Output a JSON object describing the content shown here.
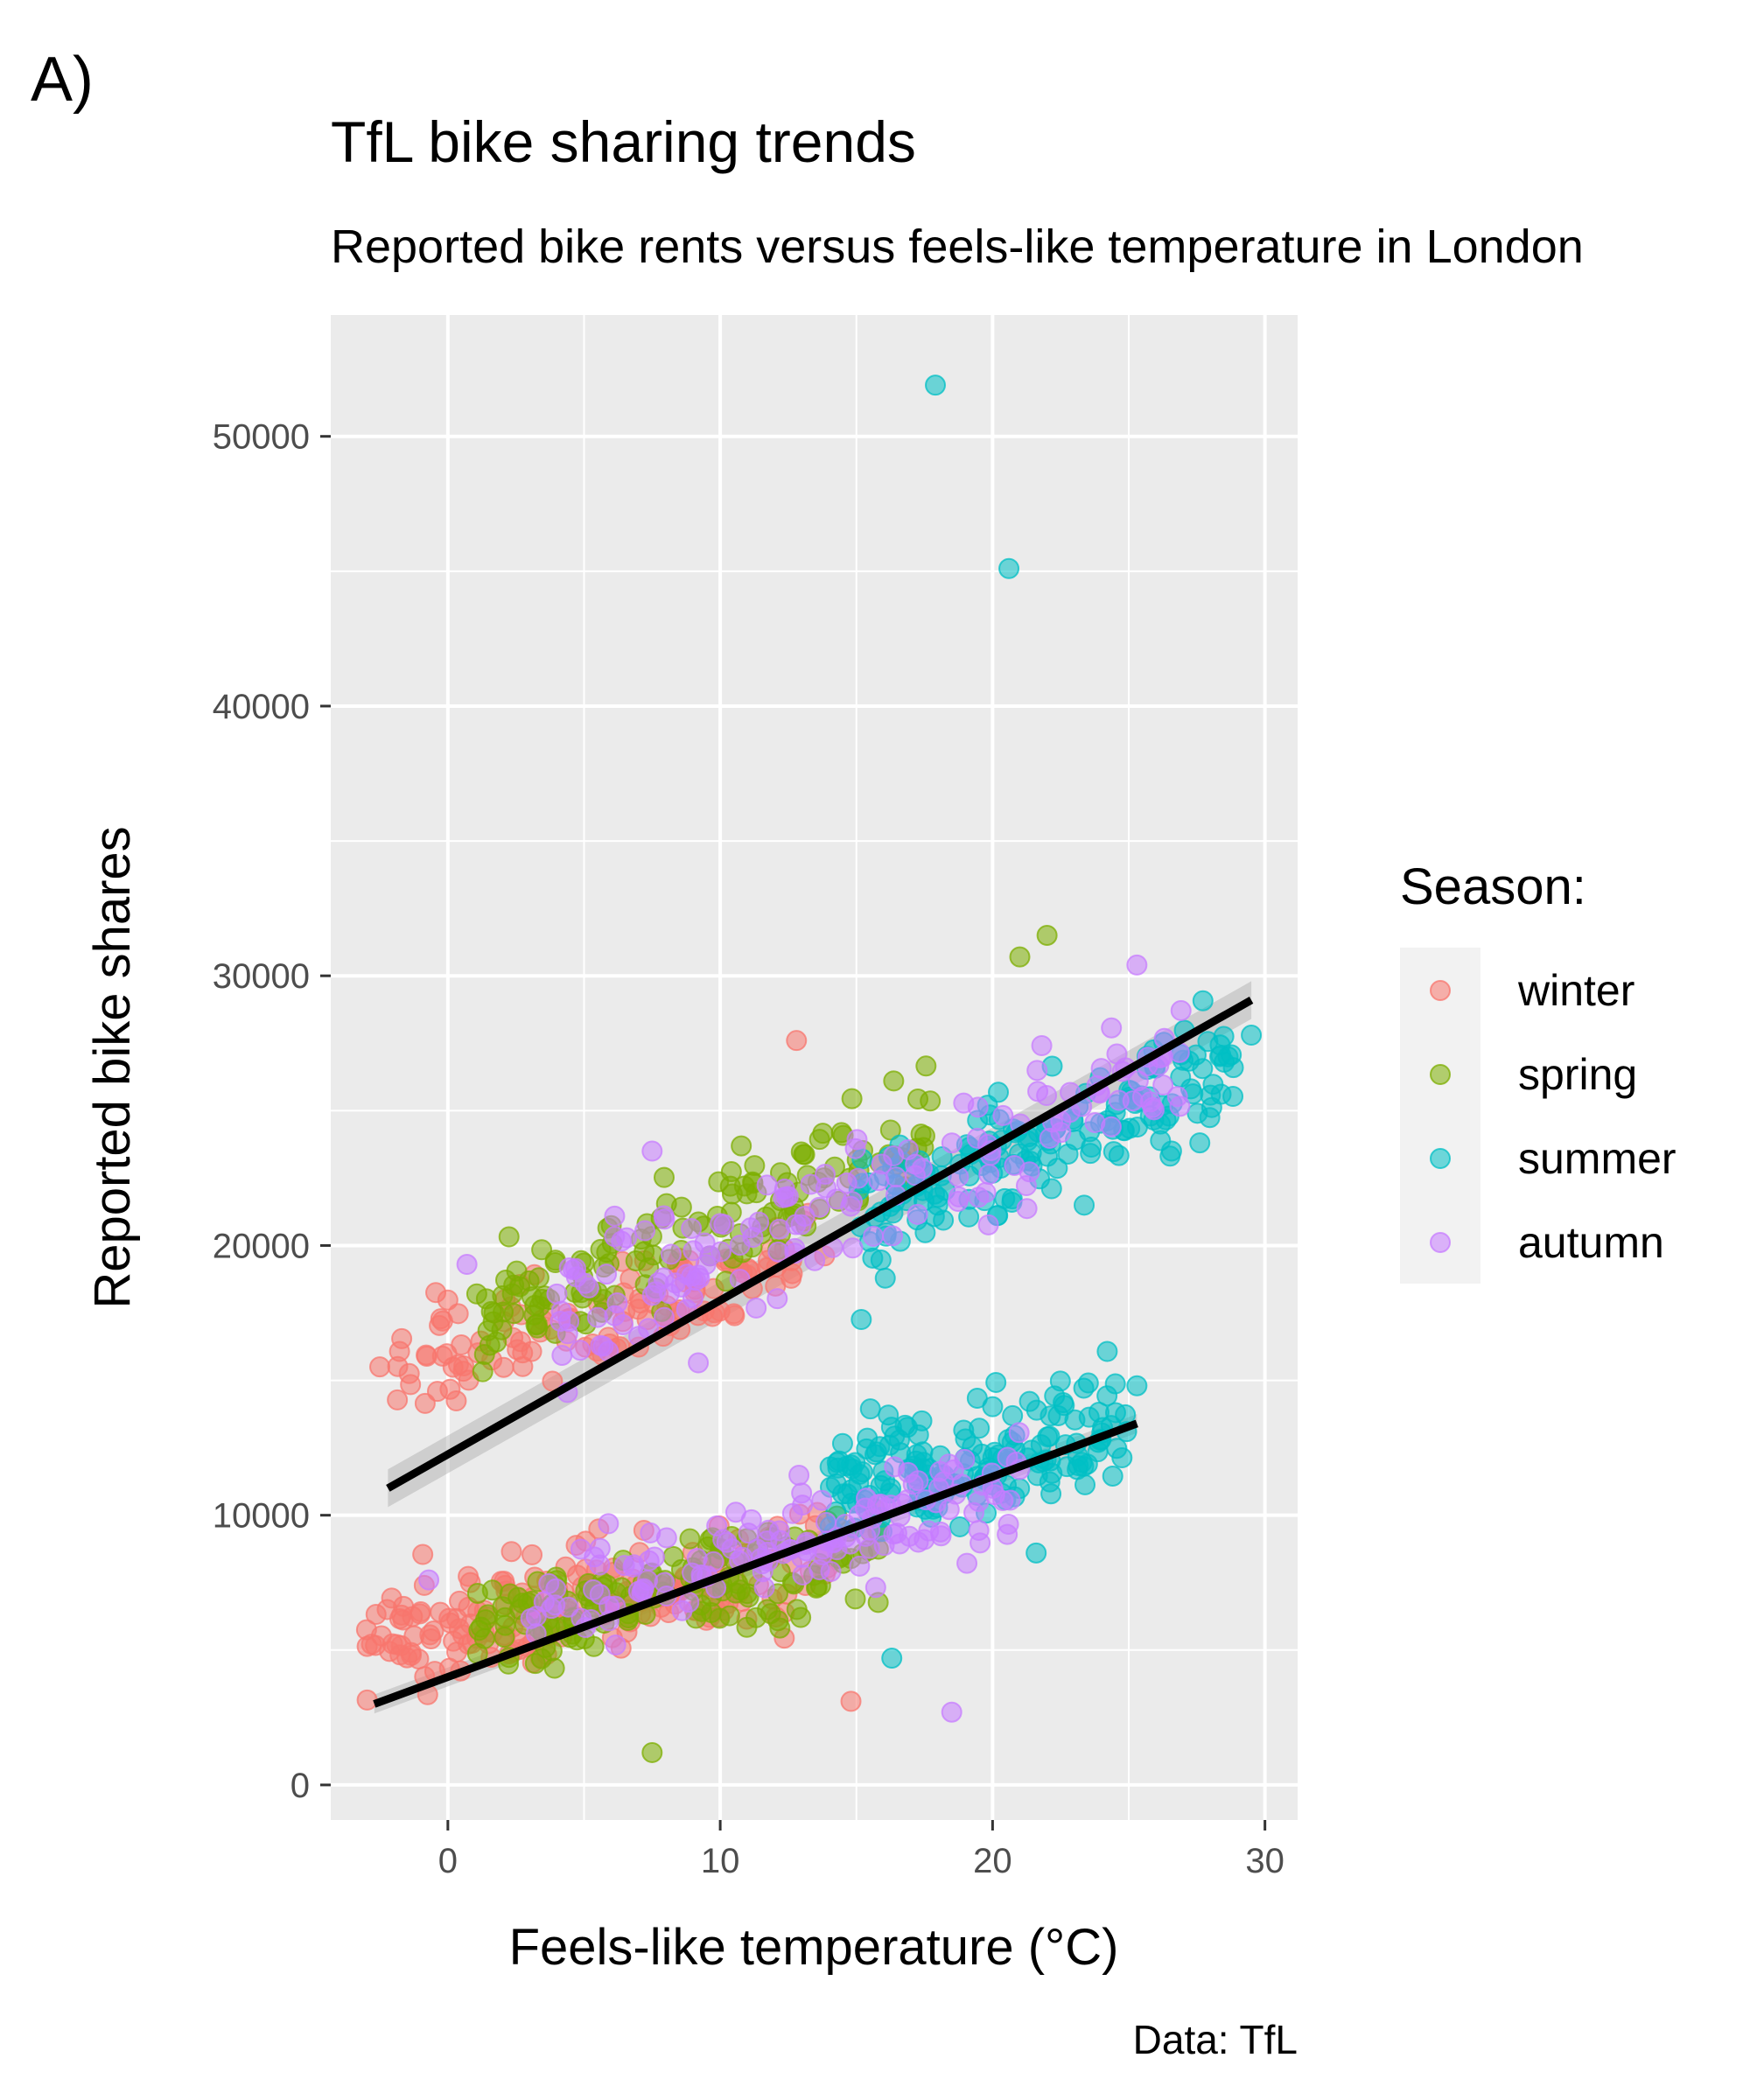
{
  "panel_tag": "A)",
  "caption": "Data: TfL",
  "chart_data": {
    "type": "scatter",
    "title": "TfL bike sharing trends",
    "subtitle": "Reported bike rents versus feels-like temperature in London",
    "xlabel": "Feels-like temperature (°C)",
    "ylabel": "Reported bike shares",
    "xlim": [
      -4.3,
      31.2
    ],
    "ylim": [
      -1300,
      54500
    ],
    "x_ticks": [
      0,
      10,
      20,
      30
    ],
    "x_tick_labels": [
      "0",
      "10",
      "20",
      "30"
    ],
    "y_ticks": [
      0,
      10000,
      20000,
      30000,
      40000,
      50000
    ],
    "y_tick_labels": [
      "0",
      "10000",
      "20000",
      "30000",
      "40000",
      "50000"
    ],
    "grid": true,
    "legend": {
      "title": "Season:",
      "position": "right"
    },
    "series": [
      {
        "name": "winter",
        "color": "#F8766D",
        "clusters": [
          {
            "x_range": [
              -3,
              14
            ],
            "y_center_at_xmin": 5200,
            "slope": 180,
            "spread": 2000,
            "count": 200
          },
          {
            "x_range": [
              -2,
              14
            ],
            "y_center_at_xmin": 15500,
            "slope": 250,
            "spread": 2000,
            "count": 120
          }
        ],
        "points": [
          [
            -2.5,
            15500
          ],
          [
            12.8,
            27600
          ],
          [
            14.8,
            3100
          ]
        ]
      },
      {
        "name": "spring",
        "color": "#7CAE00",
        "clusters": [
          {
            "x_range": [
              1,
              16
            ],
            "y_center_at_xmin": 5500,
            "slope": 230,
            "spread": 2000,
            "count": 150
          },
          {
            "x_range": [
              1,
              18
            ],
            "y_center_at_xmin": 17000,
            "slope": 450,
            "spread": 2200,
            "count": 150
          }
        ],
        "points": [
          [
            7.5,
            1200
          ],
          [
            21,
            30700
          ],
          [
            22,
            31500
          ]
        ]
      },
      {
        "name": "summer",
        "color": "#00BFC4",
        "clusters": [
          {
            "x_range": [
              14,
              25
            ],
            "y_center_at_xmin": 11000,
            "slope": 200,
            "spread": 2200,
            "count": 170
          },
          {
            "x_range": [
              15,
              29
            ],
            "y_center_at_xmin": 21000,
            "slope": 400,
            "spread": 2500,
            "count": 170
          }
        ],
        "points": [
          [
            17.9,
            51900
          ],
          [
            20.6,
            45100
          ],
          [
            29.5,
            27800
          ],
          [
            16.3,
            4700
          ],
          [
            21.6,
            8600
          ],
          [
            25.3,
            14800
          ]
        ]
      },
      {
        "name": "autumn",
        "color": "#C77CFF",
        "clusters": [
          {
            "x_range": [
              3,
              21
            ],
            "y_center_at_xmin": 6500,
            "slope": 260,
            "spread": 2000,
            "count": 150
          },
          {
            "x_range": [
              4,
              27
            ],
            "y_center_at_xmin": 17000,
            "slope": 420,
            "spread": 2400,
            "count": 160
          }
        ],
        "points": [
          [
            -0.7,
            7600
          ],
          [
            0.7,
            19300
          ],
          [
            7.5,
            23500
          ],
          [
            18.5,
            2700
          ],
          [
            25.3,
            30400
          ]
        ]
      }
    ],
    "trend_lines": [
      {
        "x": [
          -2.2,
          29.5
        ],
        "y": [
          11000,
          29100
        ],
        "band": 700
      },
      {
        "x": [
          -2.7,
          25.3
        ],
        "y": [
          3000,
          13400
        ],
        "band": 350
      }
    ]
  }
}
